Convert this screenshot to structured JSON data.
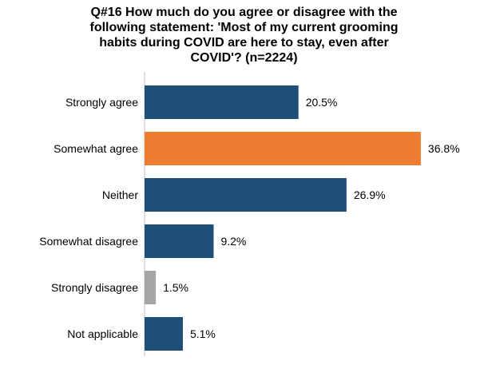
{
  "chart_data": {
    "type": "bar",
    "orientation": "horizontal",
    "title_lines": [
      "Q#16 How much do you agree or disagree with the",
      "following statement: 'Most of my current grooming",
      "habits during COVID are here to stay, even after",
      "COVID'? (n=2224)"
    ],
    "categories": [
      "Strongly agree",
      "Somewhat agree",
      "Neither",
      "Somewhat disagree",
      "Strongly disagree",
      "Not applicable"
    ],
    "values": [
      20.5,
      36.8,
      26.9,
      9.2,
      1.5,
      5.1
    ],
    "value_labels": [
      "20.5%",
      "36.8%",
      "26.9%",
      "9.2%",
      "1.5%",
      "5.1%"
    ],
    "colors": [
      "#1f4e79",
      "#ed7d31",
      "#1f4e79",
      "#1f4e79",
      "#a6a6a6",
      "#1f4e79"
    ],
    "xlim": [
      0,
      40
    ],
    "grid": false,
    "legend": "none"
  }
}
